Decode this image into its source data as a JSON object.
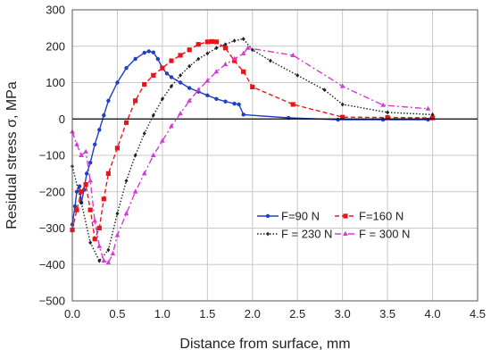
{
  "chart_data": {
    "type": "line",
    "xlabel": "Distance from surface, mm",
    "ylabel": "Residual stress σ, MPa",
    "xlim": [
      0,
      4.5
    ],
    "ylim": [
      -500,
      300
    ],
    "xticks": [
      "0.0",
      "0.5",
      "1.0",
      "1.5",
      "2.0",
      "2.5",
      "3.0",
      "3.5",
      "4.0",
      "4.5"
    ],
    "yticks": [
      "300",
      "200",
      "100",
      "0",
      "−100",
      "−200",
      "−300",
      "−400",
      "−500"
    ],
    "grid": true,
    "legend_position": "lower-right",
    "series": [
      {
        "name": "F=90 N",
        "color": "#1f3fc4",
        "line": "solid",
        "marker": "circle",
        "points": [
          [
            0.0,
            -290
          ],
          [
            0.03,
            -240
          ],
          [
            0.05,
            -200
          ],
          [
            0.08,
            -185
          ],
          [
            0.1,
            -230
          ],
          [
            0.13,
            -195
          ],
          [
            0.16,
            -150
          ],
          [
            0.2,
            -120
          ],
          [
            0.25,
            -70
          ],
          [
            0.3,
            -30
          ],
          [
            0.35,
            10
          ],
          [
            0.4,
            50
          ],
          [
            0.5,
            100
          ],
          [
            0.6,
            140
          ],
          [
            0.7,
            165
          ],
          [
            0.8,
            182
          ],
          [
            0.85,
            186
          ],
          [
            0.9,
            183
          ],
          [
            0.95,
            165
          ],
          [
            1.0,
            140
          ],
          [
            1.05,
            125
          ],
          [
            1.1,
            115
          ],
          [
            1.2,
            100
          ],
          [
            1.3,
            85
          ],
          [
            1.4,
            75
          ],
          [
            1.5,
            65
          ],
          [
            1.6,
            55
          ],
          [
            1.7,
            48
          ],
          [
            1.8,
            42
          ],
          [
            1.85,
            40
          ],
          [
            1.9,
            12
          ],
          [
            2.4,
            3
          ],
          [
            2.95,
            -2
          ],
          [
            3.45,
            -2
          ],
          [
            3.95,
            -2
          ]
        ]
      },
      {
        "name": "F=160 N",
        "color": "#e8141b",
        "line": "dashed",
        "marker": "square",
        "points": [
          [
            0.0,
            -305
          ],
          [
            0.05,
            -250
          ],
          [
            0.1,
            -200
          ],
          [
            0.15,
            -180
          ],
          [
            0.2,
            -250
          ],
          [
            0.25,
            -330
          ],
          [
            0.3,
            -300
          ],
          [
            0.35,
            -220
          ],
          [
            0.4,
            -150
          ],
          [
            0.5,
            -80
          ],
          [
            0.6,
            -10
          ],
          [
            0.7,
            50
          ],
          [
            0.8,
            95
          ],
          [
            0.9,
            120
          ],
          [
            1.0,
            140
          ],
          [
            1.1,
            160
          ],
          [
            1.2,
            175
          ],
          [
            1.3,
            190
          ],
          [
            1.4,
            205
          ],
          [
            1.5,
            212
          ],
          [
            1.55,
            213
          ],
          [
            1.6,
            212
          ],
          [
            1.7,
            195
          ],
          [
            1.8,
            160
          ],
          [
            1.9,
            130
          ],
          [
            2.0,
            88
          ],
          [
            2.45,
            40
          ],
          [
            3.0,
            5
          ],
          [
            3.5,
            4
          ],
          [
            4.0,
            3
          ]
        ]
      },
      {
        "name": "F = 230 N",
        "color": "#222222",
        "line": "dotted",
        "marker": "diamond",
        "points": [
          [
            0.0,
            -130
          ],
          [
            0.1,
            -230
          ],
          [
            0.2,
            -340
          ],
          [
            0.3,
            -390
          ],
          [
            0.4,
            -360
          ],
          [
            0.5,
            -260
          ],
          [
            0.6,
            -170
          ],
          [
            0.7,
            -100
          ],
          [
            0.8,
            -40
          ],
          [
            0.9,
            10
          ],
          [
            1.0,
            55
          ],
          [
            1.1,
            90
          ],
          [
            1.2,
            120
          ],
          [
            1.3,
            145
          ],
          [
            1.4,
            165
          ],
          [
            1.5,
            180
          ],
          [
            1.6,
            195
          ],
          [
            1.7,
            205
          ],
          [
            1.8,
            215
          ],
          [
            1.9,
            220
          ],
          [
            2.0,
            190
          ],
          [
            2.2,
            160
          ],
          [
            2.5,
            120
          ],
          [
            2.8,
            80
          ],
          [
            3.0,
            40
          ],
          [
            3.5,
            18
          ],
          [
            4.0,
            12
          ]
        ]
      },
      {
        "name": "F = 300 N",
        "color": "#d63ad6",
        "line": "dashdot",
        "marker": "triangle",
        "points": [
          [
            0.0,
            -35
          ],
          [
            0.05,
            -70
          ],
          [
            0.1,
            -100
          ],
          [
            0.15,
            -90
          ],
          [
            0.2,
            -170
          ],
          [
            0.25,
            -280
          ],
          [
            0.3,
            -350
          ],
          [
            0.35,
            -390
          ],
          [
            0.4,
            -395
          ],
          [
            0.45,
            -370
          ],
          [
            0.5,
            -320
          ],
          [
            0.6,
            -260
          ],
          [
            0.7,
            -200
          ],
          [
            0.8,
            -150
          ],
          [
            0.9,
            -100
          ],
          [
            1.0,
            -60
          ],
          [
            1.1,
            -20
          ],
          [
            1.2,
            15
          ],
          [
            1.3,
            50
          ],
          [
            1.4,
            80
          ],
          [
            1.5,
            105
          ],
          [
            1.6,
            130
          ],
          [
            1.7,
            150
          ],
          [
            1.8,
            165
          ],
          [
            1.9,
            180
          ],
          [
            1.95,
            195
          ],
          [
            2.45,
            175
          ],
          [
            3.0,
            90
          ],
          [
            3.45,
            38
          ],
          [
            3.95,
            28
          ]
        ]
      }
    ]
  }
}
